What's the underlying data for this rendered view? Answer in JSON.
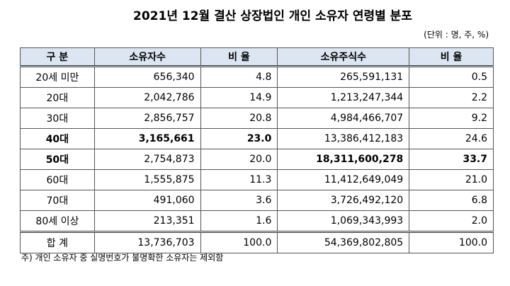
{
  "header": {
    "title": "2021년 12월 결산 상장법인 개인 소유자 연령별 분포",
    "unit": "(단위 : 명, 주, %)"
  },
  "table": {
    "columns": [
      "구 분",
      "소유자수",
      "비 율",
      "소유주식수",
      "비 율"
    ],
    "rows": [
      [
        "20세 미만",
        "656,340",
        "4.8",
        "265,591,131",
        "0.5"
      ],
      [
        "20대",
        "2,042,786",
        "14.9",
        "1,213,247,344",
        "2.2"
      ],
      [
        "30대",
        "2,856,757",
        "20.8",
        "4,984,466,707",
        "9.2"
      ],
      [
        "40대",
        "3,165,661",
        "23.0",
        "13,386,412,183",
        "24.6"
      ],
      [
        "50대",
        "2,754,873",
        "20.0",
        "18,311,600,278",
        "33.7"
      ],
      [
        "60대",
        "1,555,875",
        "11.3",
        "11,412,649,049",
        "21.0"
      ],
      [
        "70대",
        "491,060",
        "3.6",
        "3,726,492,120",
        "6.8"
      ],
      [
        "80세 이상",
        "213,351",
        "1.6",
        "1,069,343,993",
        "2.0"
      ],
      [
        "합 계",
        "13,736,703",
        "100.0",
        "54,369,802,805",
        "100.0"
      ]
    ]
  },
  "footnote": "주) 개인 소유자 중 실명번호가 불명확한 소유자는 제외함"
}
